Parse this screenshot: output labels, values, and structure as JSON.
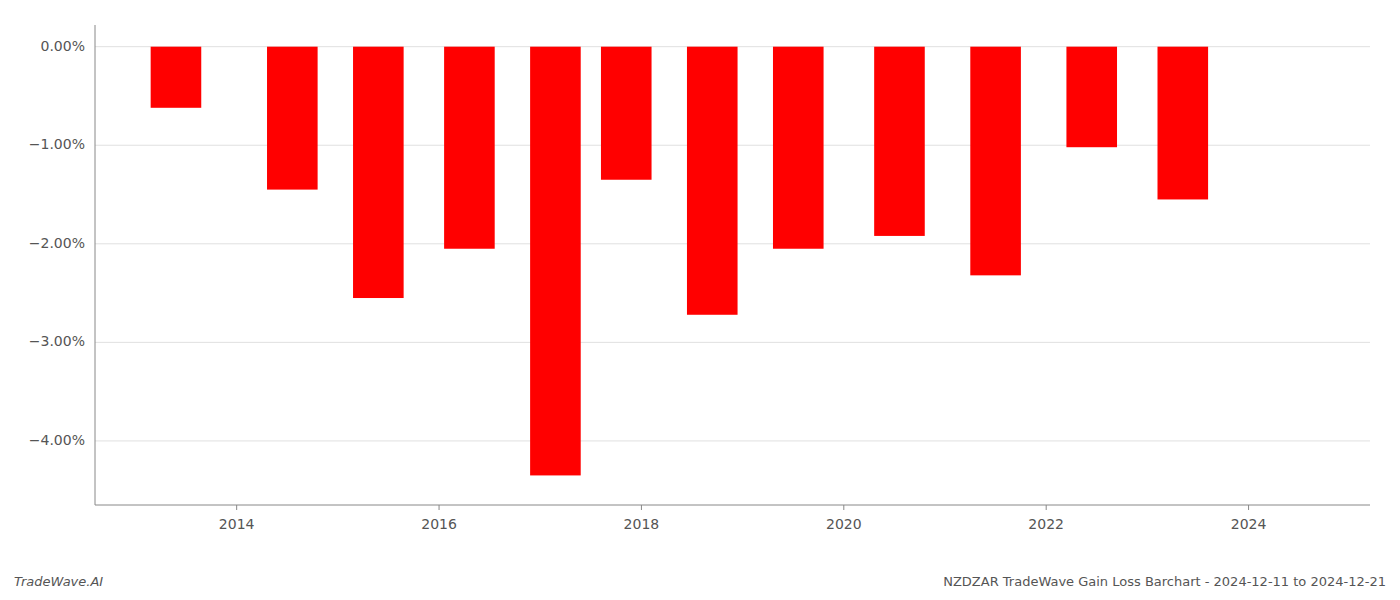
{
  "chart_data": {
    "type": "bar",
    "x": [
      2013.4,
      2014.55,
      2015.4,
      2016.3,
      2017.15,
      2017.85,
      2018.7,
      2019.55,
      2020.55,
      2021.5,
      2022.45,
      2023.35
    ],
    "values": [
      -0.62,
      -1.45,
      -2.55,
      -2.05,
      -4.35,
      -1.35,
      -2.72,
      -2.05,
      -1.92,
      -2.32,
      -1.02,
      -1.55
    ],
    "color": "#ff0000",
    "xlim": [
      2012.6,
      2025.2
    ],
    "xticks": [
      2014,
      2016,
      2018,
      2020,
      2022,
      2024
    ],
    "ylim": [
      -4.65,
      0.22
    ],
    "yticks": [
      {
        "value": 0.0,
        "label": "0.00%"
      },
      {
        "value": -1.0,
        "label": "−1.00%"
      },
      {
        "value": -2.0,
        "label": "−2.00%"
      },
      {
        "value": -3.0,
        "label": "−3.00%"
      },
      {
        "value": -4.0,
        "label": "−4.00%"
      }
    ],
    "grid": true,
    "annotations": [
      "TradeWave.AI",
      "NZDZAR TradeWave Gain Loss Barchart - 2024-12-11 to 2024-12-21"
    ]
  }
}
